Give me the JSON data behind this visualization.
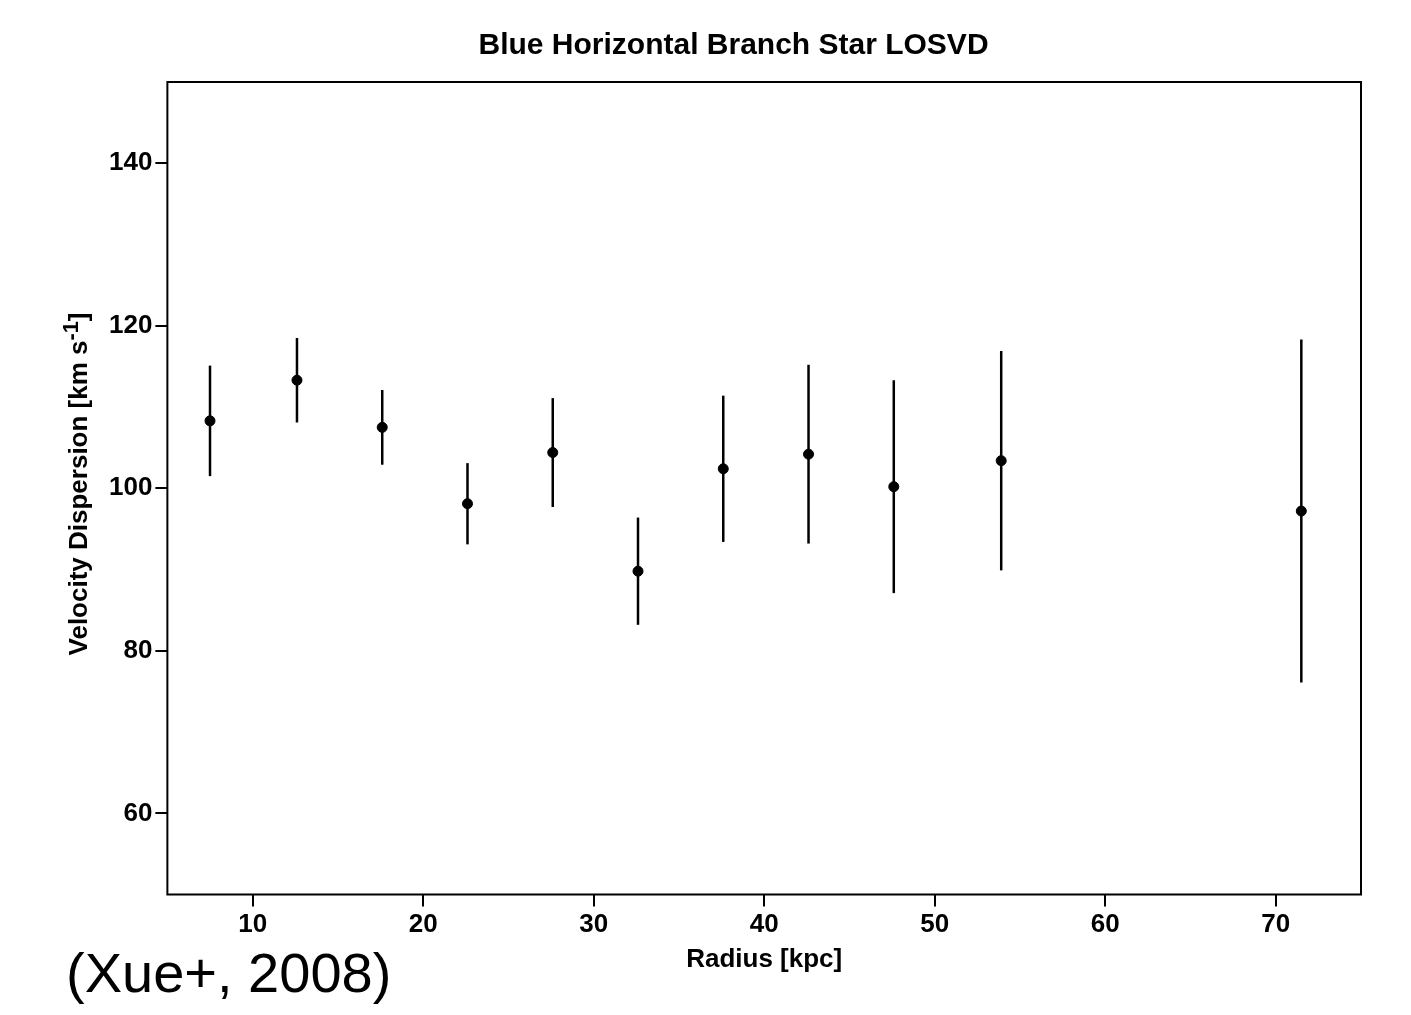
{
  "chart_data": {
    "type": "scatter",
    "title": "Blue Horizontal Branch Star LOSVD",
    "xlabel": "Radius [kpc]",
    "ylabel": "Velocity Dispersion [km s$^{-1}$]",
    "annotations": [
      "(Xue+, 2008)"
    ],
    "x": [
      7.5,
      12.6,
      17.6,
      22.6,
      27.6,
      32.6,
      37.6,
      42.6,
      47.6,
      53.9,
      71.5
    ],
    "values": [
      108.3,
      113.3,
      107.5,
      98.1,
      104.4,
      89.8,
      102.4,
      104.2,
      100.2,
      103.4,
      97.2
    ],
    "errors": [
      6.8,
      5.2,
      4.6,
      5.0,
      6.7,
      6.6,
      9.0,
      11.0,
      13.1,
      13.5,
      21.1
    ],
    "color": "#000000",
    "marker": "circle",
    "grid": false,
    "legend": false,
    "xlim": [
      5,
      75
    ],
    "xticks": [
      10,
      20,
      30,
      40,
      50,
      60,
      70
    ],
    "ylim": [
      50,
      150
    ],
    "yticks": [
      60,
      80,
      100,
      120,
      140
    ]
  }
}
